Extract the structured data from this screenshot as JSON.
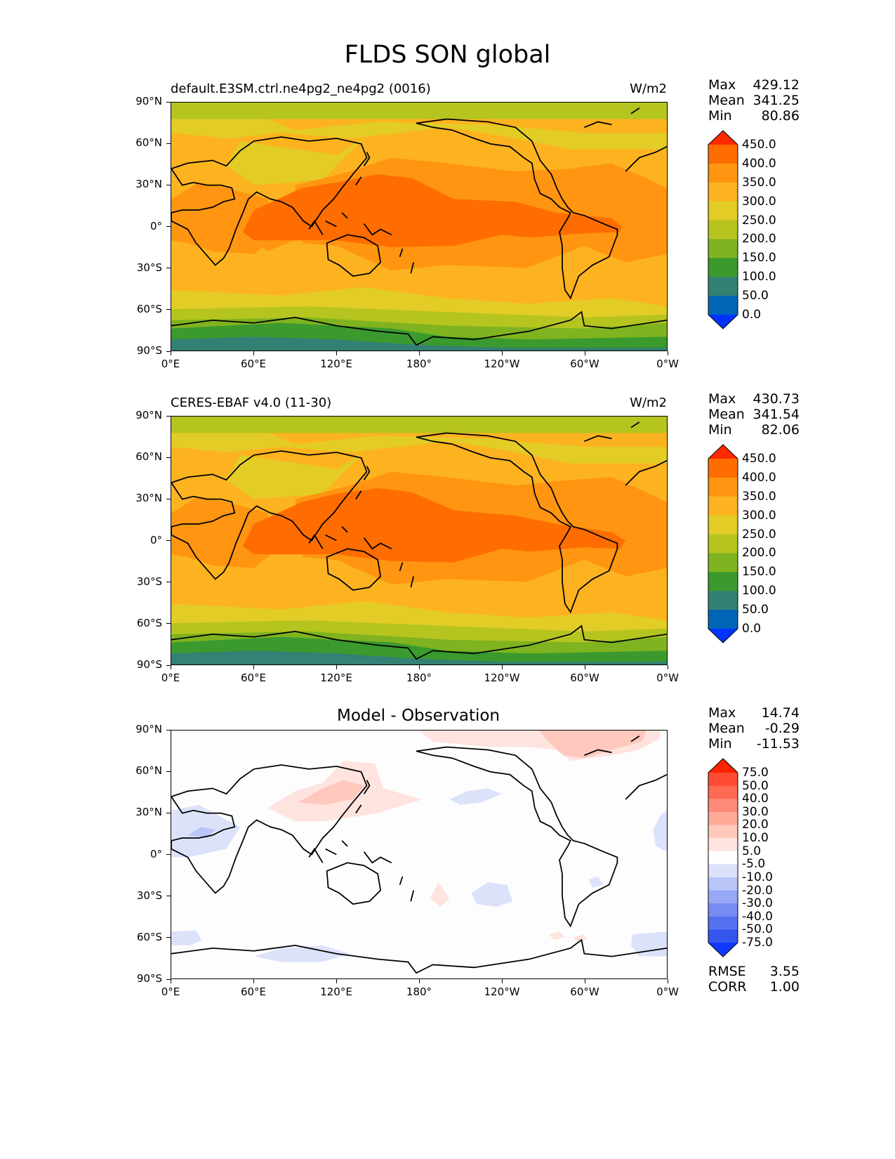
{
  "title": "FLDS SON global",
  "panels": [
    {
      "label": "default.E3SM.ctrl.ne4pg2_ne4pg2 (0016)",
      "units": "W/m2",
      "stats": [
        {
          "label": "Max",
          "value": "429.12"
        },
        {
          "label": "Mean",
          "value": "341.25"
        },
        {
          "label": "Min",
          "value": "80.86"
        }
      ]
    },
    {
      "label": "CERES-EBAF v4.0 (11-30)",
      "units": "W/m2",
      "stats": [
        {
          "label": "Max",
          "value": "430.73"
        },
        {
          "label": "Mean",
          "value": "341.54"
        },
        {
          "label": "Min",
          "value": "82.06"
        }
      ]
    },
    {
      "title": "Model - Observation",
      "stats": [
        {
          "label": "Max",
          "value": "14.74"
        },
        {
          "label": "Mean",
          "value": "-0.29"
        },
        {
          "label": "Min",
          "value": "-11.53"
        }
      ],
      "metrics": [
        {
          "label": "RMSE",
          "value": "3.55"
        },
        {
          "label": "CORR",
          "value": "1.00"
        }
      ]
    }
  ],
  "lat_ticks": [
    "90°N",
    "60°N",
    "30°N",
    "0°",
    "30°S",
    "60°S",
    "90°S"
  ],
  "lon_ticks": [
    "0°E",
    "60°E",
    "120°E",
    "180°",
    "120°W",
    "60°W",
    "0°W"
  ],
  "colorbar_main": {
    "labels": [
      "450.0",
      "400.0",
      "350.0",
      "300.0",
      "250.0",
      "200.0",
      "150.0",
      "100.0",
      "50.0",
      "0.0"
    ],
    "colors": [
      "#ff2a00",
      "#ff6d00",
      "#ff9510",
      "#fdb320",
      "#e3cc26",
      "#b5c41f",
      "#7fb31f",
      "#3a9a2e",
      "#338074",
      "#0065b6",
      "#0033ff"
    ]
  },
  "colorbar_diff": {
    "labels": [
      "75.0",
      "50.0",
      "40.0",
      "30.0",
      "20.0",
      "10.0",
      "5.0",
      "-5.0",
      "-10.0",
      "-20.0",
      "-30.0",
      "-40.0",
      "-50.0",
      "-75.0"
    ],
    "colors": [
      "#ff2200",
      "#ff4a33",
      "#ff6a55",
      "#ff8a77",
      "#ffaa99",
      "#ffc8bd",
      "#ffe3de",
      "#fdfdfd",
      "#dde2fb",
      "#bac5f8",
      "#97a8f5",
      "#768cf2",
      "#5570ef",
      "#3556ee",
      "#1038ff"
    ]
  }
}
